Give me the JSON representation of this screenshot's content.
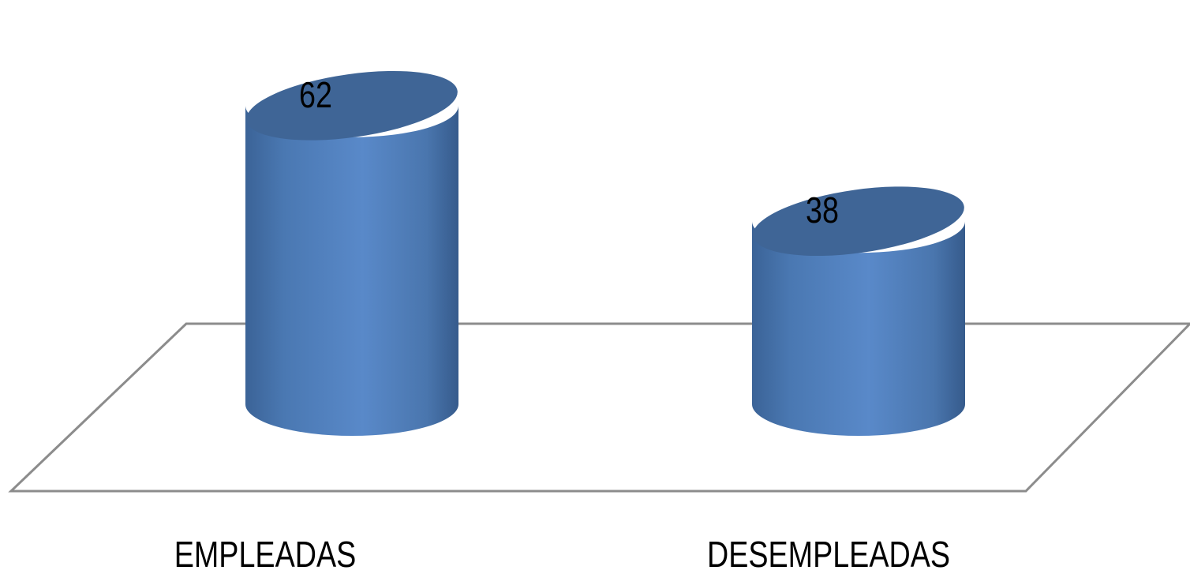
{
  "chart_data": {
    "type": "bar",
    "style": "3d-cylinder",
    "categories": [
      "EMPLEADAS",
      "DESEMPLEADAS"
    ],
    "values": [
      62,
      38
    ],
    "title": "",
    "xlabel": "",
    "ylabel": "",
    "ylim": [
      0,
      62
    ],
    "grid": false,
    "legend": "none",
    "bar_color": "#4f81bd",
    "floor_edge_color": "#8c8c8c"
  }
}
